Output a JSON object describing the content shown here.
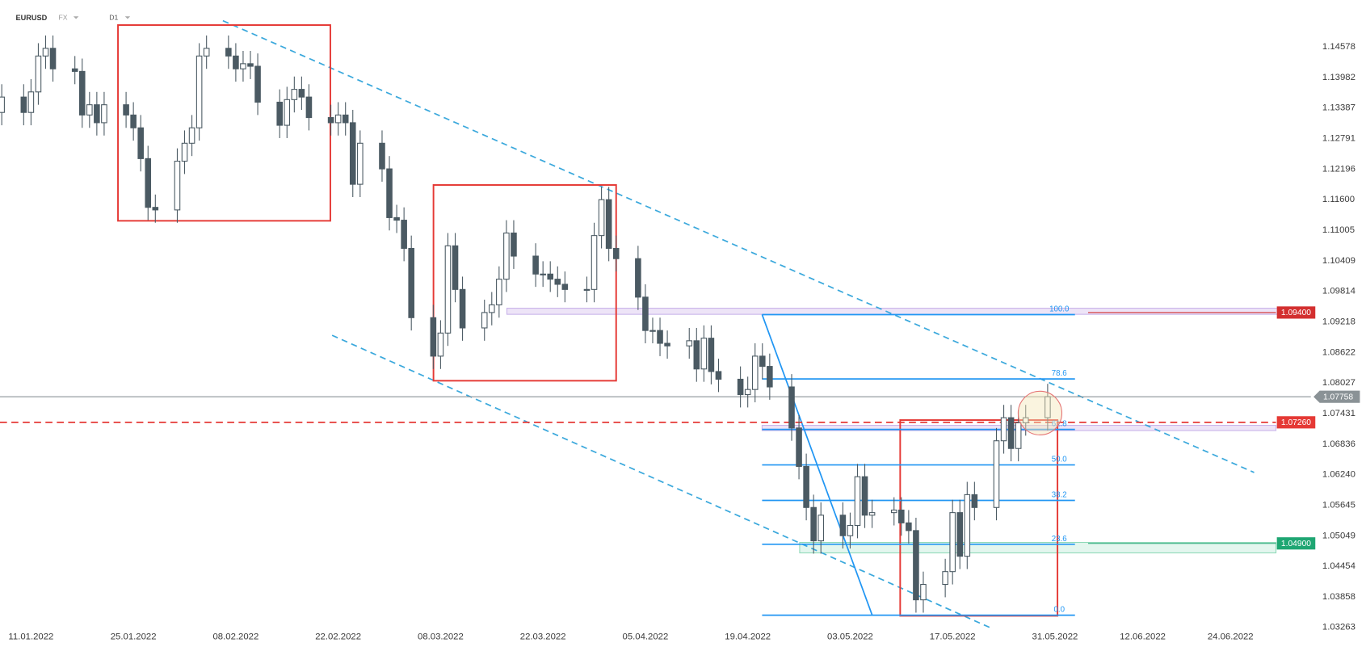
{
  "chart_data": {
    "type": "candlestick",
    "title": "EURUSD",
    "market": "FX",
    "interval": "D1",
    "up_color": "#ffffff",
    "down_color": "#4b5a63",
    "wick_color": "#4b5a63",
    "x": [
      "2022-01-07",
      "2022-01-10",
      "2022-01-11",
      "2022-01-12",
      "2022-01-13",
      "2022-01-14",
      "2022-01-17",
      "2022-01-18",
      "2022-01-19",
      "2022-01-20",
      "2022-01-21",
      "2022-01-24",
      "2022-01-25",
      "2022-01-26",
      "2022-01-27",
      "2022-01-28",
      "2022-01-31",
      "2022-02-01",
      "2022-02-02",
      "2022-02-03",
      "2022-02-04",
      "2022-02-07",
      "2022-02-08",
      "2022-02-09",
      "2022-02-10",
      "2022-02-11",
      "2022-02-14",
      "2022-02-15",
      "2022-02-16",
      "2022-02-17",
      "2022-02-18",
      "2022-02-21",
      "2022-02-22",
      "2022-02-23",
      "2022-02-24",
      "2022-02-25",
      "2022-02-28",
      "2022-03-01",
      "2022-03-02",
      "2022-03-03",
      "2022-03-04",
      "2022-03-07",
      "2022-03-08",
      "2022-03-09",
      "2022-03-10",
      "2022-03-11",
      "2022-03-14",
      "2022-03-15",
      "2022-03-16",
      "2022-03-17",
      "2022-03-18",
      "2022-03-21",
      "2022-03-22",
      "2022-03-23",
      "2022-03-24",
      "2022-03-25",
      "2022-03-28",
      "2022-03-29",
      "2022-03-30",
      "2022-03-31",
      "2022-04-01",
      "2022-04-04",
      "2022-04-05",
      "2022-04-06",
      "2022-04-07",
      "2022-04-08",
      "2022-04-11",
      "2022-04-12",
      "2022-04-13",
      "2022-04-14",
      "2022-04-15",
      "2022-04-18",
      "2022-04-19",
      "2022-04-20",
      "2022-04-21",
      "2022-04-22",
      "2022-04-25",
      "2022-04-26",
      "2022-04-27",
      "2022-04-28",
      "2022-04-29",
      "2022-05-02",
      "2022-05-03",
      "2022-05-04",
      "2022-05-05",
      "2022-05-06",
      "2022-05-09",
      "2022-05-10",
      "2022-05-11",
      "2022-05-12",
      "2022-05-13",
      "2022-05-16",
      "2022-05-17",
      "2022-05-18",
      "2022-05-19",
      "2022-05-20",
      "2022-05-23",
      "2022-05-24",
      "2022-05-25",
      "2022-05-26",
      "2022-05-27",
      "2022-05-30"
    ],
    "open": [
      1.133,
      1.136,
      1.133,
      1.137,
      1.144,
      1.1455,
      1.1415,
      1.141,
      1.1325,
      1.1345,
      1.131,
      1.1345,
      1.1325,
      1.13,
      1.124,
      1.1145,
      1.114,
      1.1235,
      1.127,
      1.13,
      1.144,
      1.1455,
      1.144,
      1.1415,
      1.1425,
      1.142,
      1.135,
      1.1305,
      1.1355,
      1.1375,
      1.136,
      1.132,
      1.131,
      1.1325,
      1.131,
      1.119,
      1.127,
      1.122,
      1.1125,
      1.112,
      1.1065,
      1.093,
      1.0855,
      1.09,
      1.107,
      1.0985,
      1.091,
      1.094,
      1.0955,
      1.1005,
      1.1095,
      1.105,
      1.1015,
      1.1015,
      1.1005,
      1.0995,
      1.0985,
      1.0985,
      1.109,
      1.116,
      1.1065,
      1.1045,
      1.097,
      1.0905,
      1.0905,
      1.088,
      1.0875,
      1.0885,
      1.083,
      1.089,
      1.0825,
      1.081,
      1.078,
      1.079,
      1.0855,
      1.0835,
      1.0795,
      1.0715,
      1.064,
      1.056,
      1.0495,
      1.0545,
      1.0505,
      1.0525,
      1.062,
      1.0545,
      1.055,
      1.0555,
      1.053,
      1.0515,
      1.038,
      1.041,
      1.0435,
      1.055,
      1.0465,
      1.0585,
      1.056,
      1.069,
      1.0735,
      1.0675,
      1.0725,
      1.0735
    ],
    "high": [
      1.1385,
      1.1385,
      1.1395,
      1.1465,
      1.148,
      1.148,
      1.144,
      1.1435,
      1.137,
      1.137,
      1.137,
      1.137,
      1.135,
      1.1325,
      1.1265,
      1.117,
      1.126,
      1.1295,
      1.1325,
      1.1465,
      1.148,
      1.148,
      1.1465,
      1.145,
      1.145,
      1.1445,
      1.1375,
      1.138,
      1.14,
      1.14,
      1.1385,
      1.1345,
      1.135,
      1.135,
      1.1335,
      1.1295,
      1.1295,
      1.1245,
      1.115,
      1.1145,
      1.109,
      1.0955,
      1.0925,
      1.1095,
      1.1095,
      1.101,
      1.0965,
      1.098,
      1.103,
      1.112,
      1.112,
      1.1075,
      1.104,
      1.104,
      1.103,
      1.102,
      1.101,
      1.1115,
      1.1185,
      1.1185,
      1.109,
      1.107,
      1.0995,
      1.093,
      1.093,
      1.0905,
      1.091,
      1.091,
      1.0915,
      1.0915,
      1.085,
      1.0835,
      1.0815,
      1.088,
      1.088,
      1.086,
      1.082,
      1.074,
      1.0665,
      1.0585,
      1.057,
      1.057,
      1.055,
      1.0645,
      1.0645,
      1.0575,
      1.058,
      1.058,
      1.0555,
      1.054,
      1.0435,
      1.046,
      1.0575,
      1.0575,
      1.061,
      1.061,
      1.0715,
      1.076,
      1.076,
      1.075,
      1.076,
      1.0801
    ],
    "low": [
      1.1305,
      1.1305,
      1.1305,
      1.1345,
      1.1415,
      1.139,
      1.1385,
      1.13,
      1.13,
      1.1285,
      1.1285,
      1.13,
      1.1275,
      1.1215,
      1.112,
      1.1115,
      1.1115,
      1.121,
      1.1245,
      1.1275,
      1.1415,
      1.1415,
      1.139,
      1.139,
      1.1395,
      1.1325,
      1.128,
      1.128,
      1.133,
      1.1335,
      1.1295,
      1.1285,
      1.1285,
      1.1285,
      1.1165,
      1.1165,
      1.1195,
      1.11,
      1.1095,
      1.104,
      1.0905,
      1.083,
      1.083,
      1.0875,
      1.096,
      1.0885,
      1.0885,
      1.0915,
      1.093,
      1.098,
      1.1025,
      1.099,
      1.099,
      1.098,
      1.097,
      1.096,
      1.096,
      1.096,
      1.1065,
      1.104,
      1.102,
      1.0945,
      1.088,
      1.088,
      1.0855,
      1.085,
      1.085,
      1.0805,
      1.0805,
      1.08,
      1.0785,
      1.0755,
      1.0755,
      1.0765,
      1.081,
      1.077,
      1.069,
      1.0615,
      1.0535,
      1.047,
      1.047,
      1.048,
      1.048,
      1.05,
      1.052,
      1.052,
      1.0525,
      1.0505,
      1.049,
      1.0355,
      1.0355,
      1.0385,
      1.041,
      1.044,
      1.044,
      1.0535,
      1.0535,
      1.0665,
      1.065,
      1.065,
      1.07,
      1.071
    ],
    "close": [
      1.136,
      1.133,
      1.137,
      1.144,
      1.1455,
      1.1415,
      1.141,
      1.1325,
      1.1345,
      1.131,
      1.1345,
      1.1325,
      1.13,
      1.124,
      1.1145,
      1.114,
      1.1235,
      1.127,
      1.13,
      1.144,
      1.1455,
      1.144,
      1.1415,
      1.1425,
      1.142,
      1.135,
      1.1305,
      1.1355,
      1.1375,
      1.136,
      1.132,
      1.131,
      1.1325,
      1.131,
      1.119,
      1.127,
      1.122,
      1.1125,
      1.112,
      1.1065,
      1.093,
      1.0855,
      1.09,
      1.107,
      1.0985,
      1.091,
      1.094,
      1.0955,
      1.1005,
      1.1095,
      1.105,
      1.1015,
      1.1015,
      1.1005,
      1.0995,
      1.0985,
      1.0985,
      1.109,
      1.116,
      1.1065,
      1.1045,
      1.097,
      1.0905,
      1.0905,
      1.088,
      1.0875,
      1.0885,
      1.083,
      1.089,
      1.0825,
      1.081,
      1.078,
      1.079,
      1.0855,
      1.0835,
      1.0795,
      1.0715,
      1.064,
      1.056,
      1.0495,
      1.0545,
      1.0505,
      1.0525,
      1.062,
      1.0545,
      1.055,
      1.0555,
      1.053,
      1.0515,
      1.038,
      1.041,
      1.0435,
      1.055,
      1.0465,
      1.0585,
      1.056,
      1.069,
      1.0735,
      1.0675,
      1.0725,
      1.0735,
      1.0776
    ],
    "xlim": [
      "2022-01-07",
      "2022-07-05"
    ],
    "xticks": [
      {
        "value": "2022-01-11",
        "label": "11.01.2022"
      },
      {
        "value": "2022-01-25",
        "label": "25.01.2022"
      },
      {
        "value": "2022-02-08",
        "label": "08.02.2022"
      },
      {
        "value": "2022-02-22",
        "label": "22.02.2022"
      },
      {
        "value": "2022-03-08",
        "label": "08.03.2022"
      },
      {
        "value": "2022-03-22",
        "label": "22.03.2022"
      },
      {
        "value": "2022-04-05",
        "label": "05.04.2022"
      },
      {
        "value": "2022-04-19",
        "label": "19.04.2022"
      },
      {
        "value": "2022-05-03",
        "label": "03.05.2022"
      },
      {
        "value": "2022-05-17",
        "label": "17.05.2022"
      },
      {
        "value": "2022-05-31",
        "label": "31.05.2022"
      },
      {
        "value": "2022-06-12",
        "label": "12.06.2022"
      },
      {
        "value": "2022-06-24",
        "label": "24.06.2022"
      }
    ],
    "ylim": [
      1.0325,
      1.1548
    ],
    "yticks": [
      1.03263,
      1.03858,
      1.04454,
      1.05049,
      1.05645,
      {
        "value": 1.0624,
        "label": "1.06240"
      },
      1.06836,
      1.07431,
      1.08027,
      1.08622,
      1.09218,
      1.09814,
      1.10409,
      1.11005,
      {
        "value": 1.116,
        "label": "1.11600"
      },
      1.12196,
      1.12791,
      1.13387,
      1.13982,
      1.14578
    ],
    "levels": [
      {
        "value": 1.094,
        "label": "1.09400",
        "color": "#d32f2f",
        "style": "solid"
      },
      {
        "value": 1.07758,
        "label": "1.07758",
        "color": "#8a9296",
        "style": "current"
      },
      {
        "value": 1.0726,
        "label": "1.07260",
        "color": "#e53935",
        "style": "dashed"
      },
      {
        "value": 1.049,
        "label": "1.04900",
        "color": "#1ea672",
        "style": "solid"
      }
    ],
    "fibonacci": {
      "high": 1.0936,
      "low": 1.035,
      "color": "#2196f3",
      "levels": [
        {
          "value": 100,
          "label": "100.0"
        },
        78.6,
        61.8,
        {
          "value": 50,
          "label": "50.0"
        },
        38.2,
        23.6,
        {
          "value": 0,
          "label": "0.0"
        }
      ]
    }
  }
}
